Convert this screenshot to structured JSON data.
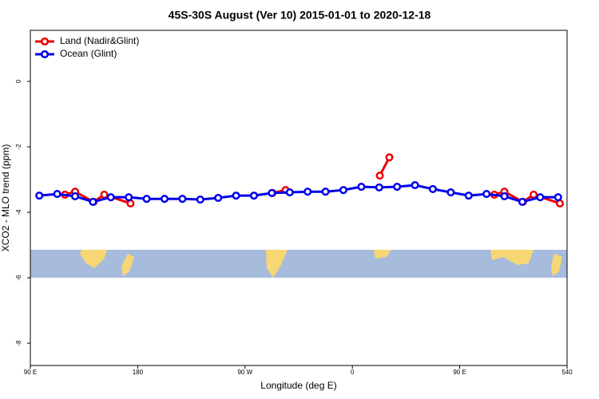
{
  "chart_data": {
    "type": "line",
    "title": "45S-30S August (Ver 10)   2015-01-01 to 2020-12-18",
    "xlabel": "Longitude (deg E)",
    "ylabel": "XCO2 - MLO trend (ppm)",
    "xlim": [
      90,
      540
    ],
    "xticks": [
      {
        "value": 90,
        "label": "90 E"
      },
      180,
      {
        "value": 270,
        "label": "90 W"
      },
      {
        "value": 360,
        "label": "0"
      },
      {
        "value": 450,
        "label": "90 E"
      },
      540
    ],
    "ylim": [
      -8.68,
      1.56
    ],
    "yticks": [
      0,
      -2,
      -4,
      -6,
      -8
    ],
    "legend": "top-left",
    "series": [
      {
        "name": "Land (Nadir&Glint)",
        "color": "#ee0000",
        "x": [
          119,
          127.5,
          143,
          152,
          174,
          null,
          293,
          304,
          null,
          383,
          391,
          null,
          479,
          487.5,
          503,
          512,
          534
        ],
        "values": [
          -3.46,
          -3.37,
          -3.68,
          -3.46,
          -3.73,
          null,
          -3.41,
          -3.32,
          null,
          -2.88,
          -2.32,
          null,
          -3.46,
          -3.37,
          -3.68,
          -3.46,
          -3.73
        ]
      },
      {
        "name": "Ocean (Glint)",
        "color": "#0000ee",
        "x": [
          97.5,
          112.5,
          127.5,
          142.5,
          157.5,
          172.5,
          187.5,
          202.5,
          217.5,
          232.5,
          247.5,
          262.5,
          277.5,
          292.5,
          307.5,
          322.5,
          337.5,
          352.5,
          367.5,
          382.5,
          397.5,
          412.5,
          427.5,
          442.5,
          457.5,
          472.5,
          487.5,
          502.5,
          517.5,
          532.5
        ],
        "values": [
          -3.49,
          -3.44,
          -3.51,
          -3.68,
          -3.54,
          -3.54,
          -3.59,
          -3.59,
          -3.59,
          -3.61,
          -3.56,
          -3.49,
          -3.49,
          -3.41,
          -3.39,
          -3.37,
          -3.37,
          -3.32,
          -3.22,
          -3.24,
          -3.22,
          -3.17,
          -3.29,
          -3.39,
          -3.49,
          -3.44,
          -3.51,
          -3.68,
          -3.54,
          -3.54
        ]
      }
    ]
  }
}
